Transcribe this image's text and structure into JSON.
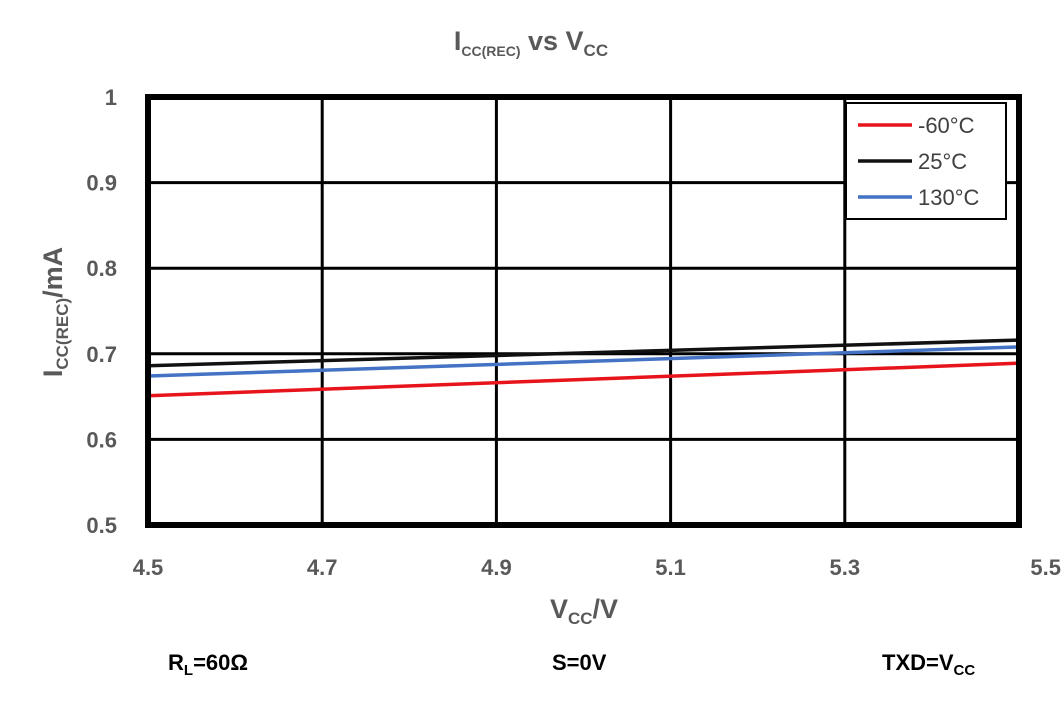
{
  "chart_data": {
    "type": "line",
    "title": {
      "main": "I",
      "sub": "CC(REC)",
      "rest": " vs V",
      "sub2": "CC"
    },
    "xlabel": {
      "main": "V",
      "sub": "CC",
      "rest": "/V"
    },
    "ylabel": {
      "main": "I",
      "sub": "CC(REC)",
      "rest": "/mA"
    },
    "xlim": [
      4.5,
      5.5
    ],
    "ylim": [
      0.5,
      1.0
    ],
    "x_ticks": [
      4.5,
      4.7,
      4.9,
      5.1,
      5.3,
      5.5
    ],
    "y_ticks": [
      0.5,
      0.6,
      0.7,
      0.8,
      0.9,
      1.0
    ],
    "x_tick_labels": [
      "4.5",
      "4.7",
      "4.9",
      "5.1",
      "5.3",
      "5.5"
    ],
    "y_tick_labels": [
      "0.5",
      "0.6",
      "0.7",
      "0.8",
      "0.9",
      "1"
    ],
    "grid": true,
    "legend_position": "top-right",
    "series": [
      {
        "name": "-60°C",
        "color": "#e8141b",
        "x": [
          4.5,
          5.5
        ],
        "y": [
          0.651,
          0.689
        ]
      },
      {
        "name": "25°C",
        "color": "#111111",
        "x": [
          4.5,
          5.5
        ],
        "y": [
          0.686,
          0.716
        ]
      },
      {
        "name": "130°C",
        "color": "#4472c4",
        "x": [
          4.5,
          5.5
        ],
        "y": [
          0.674,
          0.708
        ]
      }
    ],
    "annotations": [
      {
        "id": "rl",
        "main": "R",
        "sub": "L",
        "rest": "=60Ω"
      },
      {
        "id": "s",
        "main": "S=0V",
        "sub": "",
        "rest": ""
      },
      {
        "id": "txd",
        "main": "TXD=V",
        "sub": "CC",
        "rest": ""
      }
    ]
  }
}
